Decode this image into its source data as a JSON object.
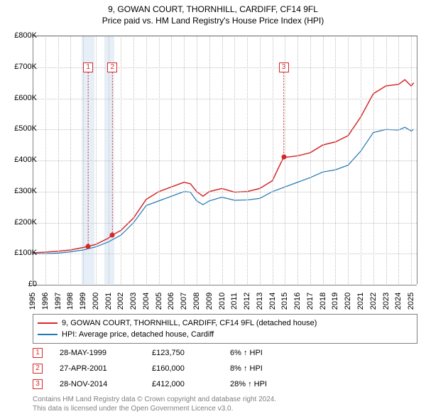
{
  "title_line1": "9, GOWAN COURT, THORNHILL, CARDIFF, CF14 9FL",
  "title_line2": "Price paid vs. HM Land Registry's House Price Index (HPI)",
  "chart": {
    "type": "line",
    "background_color": "#ffffff",
    "grid_color": "#c0c0c0",
    "axis_color": "#808080",
    "ylim": [
      0,
      800000
    ],
    "ytick_step": 100000,
    "yticks": [
      "£0",
      "£100K",
      "£200K",
      "£300K",
      "£400K",
      "£500K",
      "£600K",
      "£700K",
      "£800K"
    ],
    "xlim": [
      1995,
      2025.5
    ],
    "xticks": [
      1995,
      1996,
      1997,
      1998,
      1999,
      2000,
      2001,
      2002,
      2003,
      2004,
      2005,
      2006,
      2007,
      2008,
      2009,
      2010,
      2011,
      2012,
      2013,
      2014,
      2015,
      2016,
      2017,
      2018,
      2019,
      2020,
      2021,
      2022,
      2023,
      2024,
      2025
    ],
    "vband_color": "#e6eef7",
    "vbands": [
      {
        "start": 1998.9,
        "end": 1999.9
      },
      {
        "start": 2000.7,
        "end": 2001.5
      }
    ],
    "series": [
      {
        "name": "property",
        "color": "#d62728",
        "width": 1.5,
        "points": [
          [
            1995,
            103000
          ],
          [
            1996,
            105000
          ],
          [
            1997,
            108000
          ],
          [
            1998,
            112000
          ],
          [
            1999,
            120000
          ],
          [
            1999.4,
            123750
          ],
          [
            2000,
            130000
          ],
          [
            2001,
            150000
          ],
          [
            2001.32,
            160000
          ],
          [
            2002,
            175000
          ],
          [
            2003,
            215000
          ],
          [
            2004,
            275000
          ],
          [
            2005,
            300000
          ],
          [
            2006,
            315000
          ],
          [
            2007,
            330000
          ],
          [
            2007.5,
            325000
          ],
          [
            2008,
            300000
          ],
          [
            2008.5,
            285000
          ],
          [
            2009,
            300000
          ],
          [
            2010,
            310000
          ],
          [
            2011,
            298000
          ],
          [
            2012,
            300000
          ],
          [
            2013,
            310000
          ],
          [
            2014,
            335000
          ],
          [
            2014.9,
            412000
          ],
          [
            2015,
            410000
          ],
          [
            2016,
            415000
          ],
          [
            2017,
            425000
          ],
          [
            2018,
            450000
          ],
          [
            2019,
            460000
          ],
          [
            2020,
            480000
          ],
          [
            2021,
            540000
          ],
          [
            2022,
            615000
          ],
          [
            2023,
            640000
          ],
          [
            2024,
            645000
          ],
          [
            2024.5,
            660000
          ],
          [
            2025,
            640000
          ],
          [
            2025.2,
            650000
          ]
        ]
      },
      {
        "name": "hpi",
        "color": "#1f77b4",
        "width": 1.2,
        "points": [
          [
            1995,
            100000
          ],
          [
            1996,
            100000
          ],
          [
            1997,
            102000
          ],
          [
            1998,
            106000
          ],
          [
            1999,
            112000
          ],
          [
            2000,
            122000
          ],
          [
            2001,
            138000
          ],
          [
            2002,
            160000
          ],
          [
            2003,
            200000
          ],
          [
            2004,
            255000
          ],
          [
            2005,
            270000
          ],
          [
            2006,
            285000
          ],
          [
            2007,
            300000
          ],
          [
            2007.5,
            298000
          ],
          [
            2008,
            270000
          ],
          [
            2008.5,
            258000
          ],
          [
            2009,
            270000
          ],
          [
            2010,
            282000
          ],
          [
            2011,
            272000
          ],
          [
            2012,
            273000
          ],
          [
            2013,
            278000
          ],
          [
            2014,
            300000
          ],
          [
            2015,
            315000
          ],
          [
            2016,
            330000
          ],
          [
            2017,
            345000
          ],
          [
            2018,
            363000
          ],
          [
            2019,
            370000
          ],
          [
            2020,
            385000
          ],
          [
            2021,
            430000
          ],
          [
            2022,
            490000
          ],
          [
            2023,
            500000
          ],
          [
            2024,
            498000
          ],
          [
            2024.5,
            507000
          ],
          [
            2025,
            495000
          ],
          [
            2025.2,
            500000
          ]
        ]
      }
    ],
    "markers": [
      {
        "n": "1",
        "x": 1999.4,
        "y": 123750,
        "label_y": 700000
      },
      {
        "n": "2",
        "x": 2001.32,
        "y": 160000,
        "label_y": 700000
      },
      {
        "n": "3",
        "x": 2014.9,
        "y": 412000,
        "label_y": 700000
      }
    ],
    "marker_color": "#d62728",
    "marker_line_color": "#d62728"
  },
  "legend": {
    "items": [
      {
        "color": "#d62728",
        "label": "9, GOWAN COURT, THORNHILL, CARDIFF, CF14 9FL (detached house)"
      },
      {
        "color": "#1f77b4",
        "label": "HPI: Average price, detached house, Cardiff"
      }
    ]
  },
  "sales": [
    {
      "n": "1",
      "date": "28-MAY-1999",
      "price": "£123,750",
      "diff": "6% ↑ HPI"
    },
    {
      "n": "2",
      "date": "27-APR-2001",
      "price": "£160,000",
      "diff": "8% ↑ HPI"
    },
    {
      "n": "3",
      "date": "28-NOV-2014",
      "price": "£412,000",
      "diff": "28% ↑ HPI"
    }
  ],
  "footer_line1": "Contains HM Land Registry data © Crown copyright and database right 2024.",
  "footer_line2": "This data is licensed under the Open Government Licence v3.0."
}
